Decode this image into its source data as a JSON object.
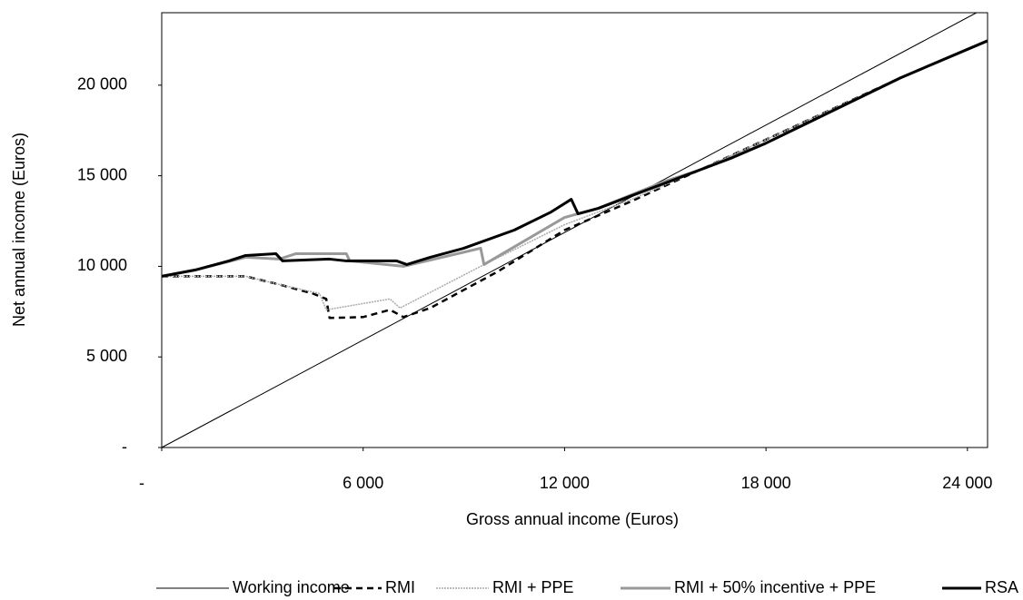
{
  "chart_data": {
    "type": "line",
    "x_label": "Gross annual income (Euros)",
    "y_label": "Net annual income (Euros)",
    "xlim": [
      0,
      24600
    ],
    "ylim": [
      0,
      24000
    ],
    "xticks": [
      {
        "value": 0,
        "label": "-"
      },
      {
        "value": 6000,
        "label": "6 000"
      },
      {
        "value": 12000,
        "label": "12 000"
      },
      {
        "value": 18000,
        "label": "18 000"
      },
      {
        "value": 24000,
        "label": "24 000"
      }
    ],
    "yticks": [
      {
        "value": 0,
        "label": "-"
      },
      {
        "value": 5000,
        "label": "5 000"
      },
      {
        "value": 10000,
        "label": "10 000"
      },
      {
        "value": 15000,
        "label": "15 000"
      },
      {
        "value": 20000,
        "label": "20 000"
      }
    ],
    "grid": false,
    "legend": "bottom",
    "series": [
      {
        "name": "Working income",
        "color": "#000000",
        "style": "solid",
        "width": 1,
        "x": [
          0,
          24270
        ],
        "values": [
          0,
          24000
        ]
      },
      {
        "name": "RMI",
        "color": "#000000",
        "style": "dashed",
        "width": 2.5,
        "x": [
          0,
          1000,
          2500,
          3500,
          4500,
          4900,
          5000,
          6000,
          6800,
          7200,
          8000,
          10000,
          12000,
          14000,
          16000,
          18000,
          20000,
          22000,
          24600
        ],
        "values": [
          9450,
          9450,
          9450,
          9000,
          8500,
          8200,
          7150,
          7200,
          7600,
          7200,
          7700,
          9700,
          12000,
          13600,
          15300,
          17000,
          18700,
          20400,
          22450
        ]
      },
      {
        "name": "RMI + PPE",
        "color": "#aaaaaa",
        "style": "dotted",
        "width": 1.5,
        "x": [
          0,
          1000,
          2500,
          3500,
          4700,
          4900,
          6800,
          7100,
          9500,
          12000,
          14000,
          16000,
          18000,
          20000,
          22000,
          24600
        ],
        "values": [
          9450,
          9450,
          9450,
          9000,
          8500,
          7600,
          8200,
          7700,
          10000,
          12300,
          13700,
          15300,
          17000,
          18700,
          20400,
          22450
        ]
      },
      {
        "name": "RMI + 50% incentive + PPE",
        "color": "#999999",
        "style": "solid",
        "width": 3,
        "x": [
          0,
          1000,
          2500,
          3500,
          4000,
          5500,
          5600,
          7200,
          9500,
          9600,
          12000,
          13000,
          15000,
          16000,
          18000,
          20000,
          22000,
          24600
        ],
        "values": [
          9450,
          9800,
          10500,
          10400,
          10700,
          10700,
          10300,
          10000,
          11000,
          10100,
          12700,
          13200,
          14700,
          15300,
          16800,
          18600,
          20400,
          22450
        ]
      },
      {
        "name": "RSA",
        "color": "#000000",
        "style": "solid",
        "width": 3,
        "x": [
          0,
          1000,
          2000,
          2500,
          3400,
          3600,
          5000,
          5500,
          7000,
          7300,
          8000,
          9000,
          10500,
          11600,
          12200,
          12400,
          13000,
          14000,
          15000,
          16000,
          17000,
          18000,
          20000,
          22000,
          24600
        ],
        "values": [
          9450,
          9800,
          10300,
          10600,
          10700,
          10300,
          10400,
          10300,
          10300,
          10100,
          10500,
          11000,
          12000,
          13000,
          13700,
          12900,
          13200,
          13900,
          14600,
          15300,
          16000,
          16800,
          18600,
          20400,
          22450
        ]
      }
    ]
  }
}
